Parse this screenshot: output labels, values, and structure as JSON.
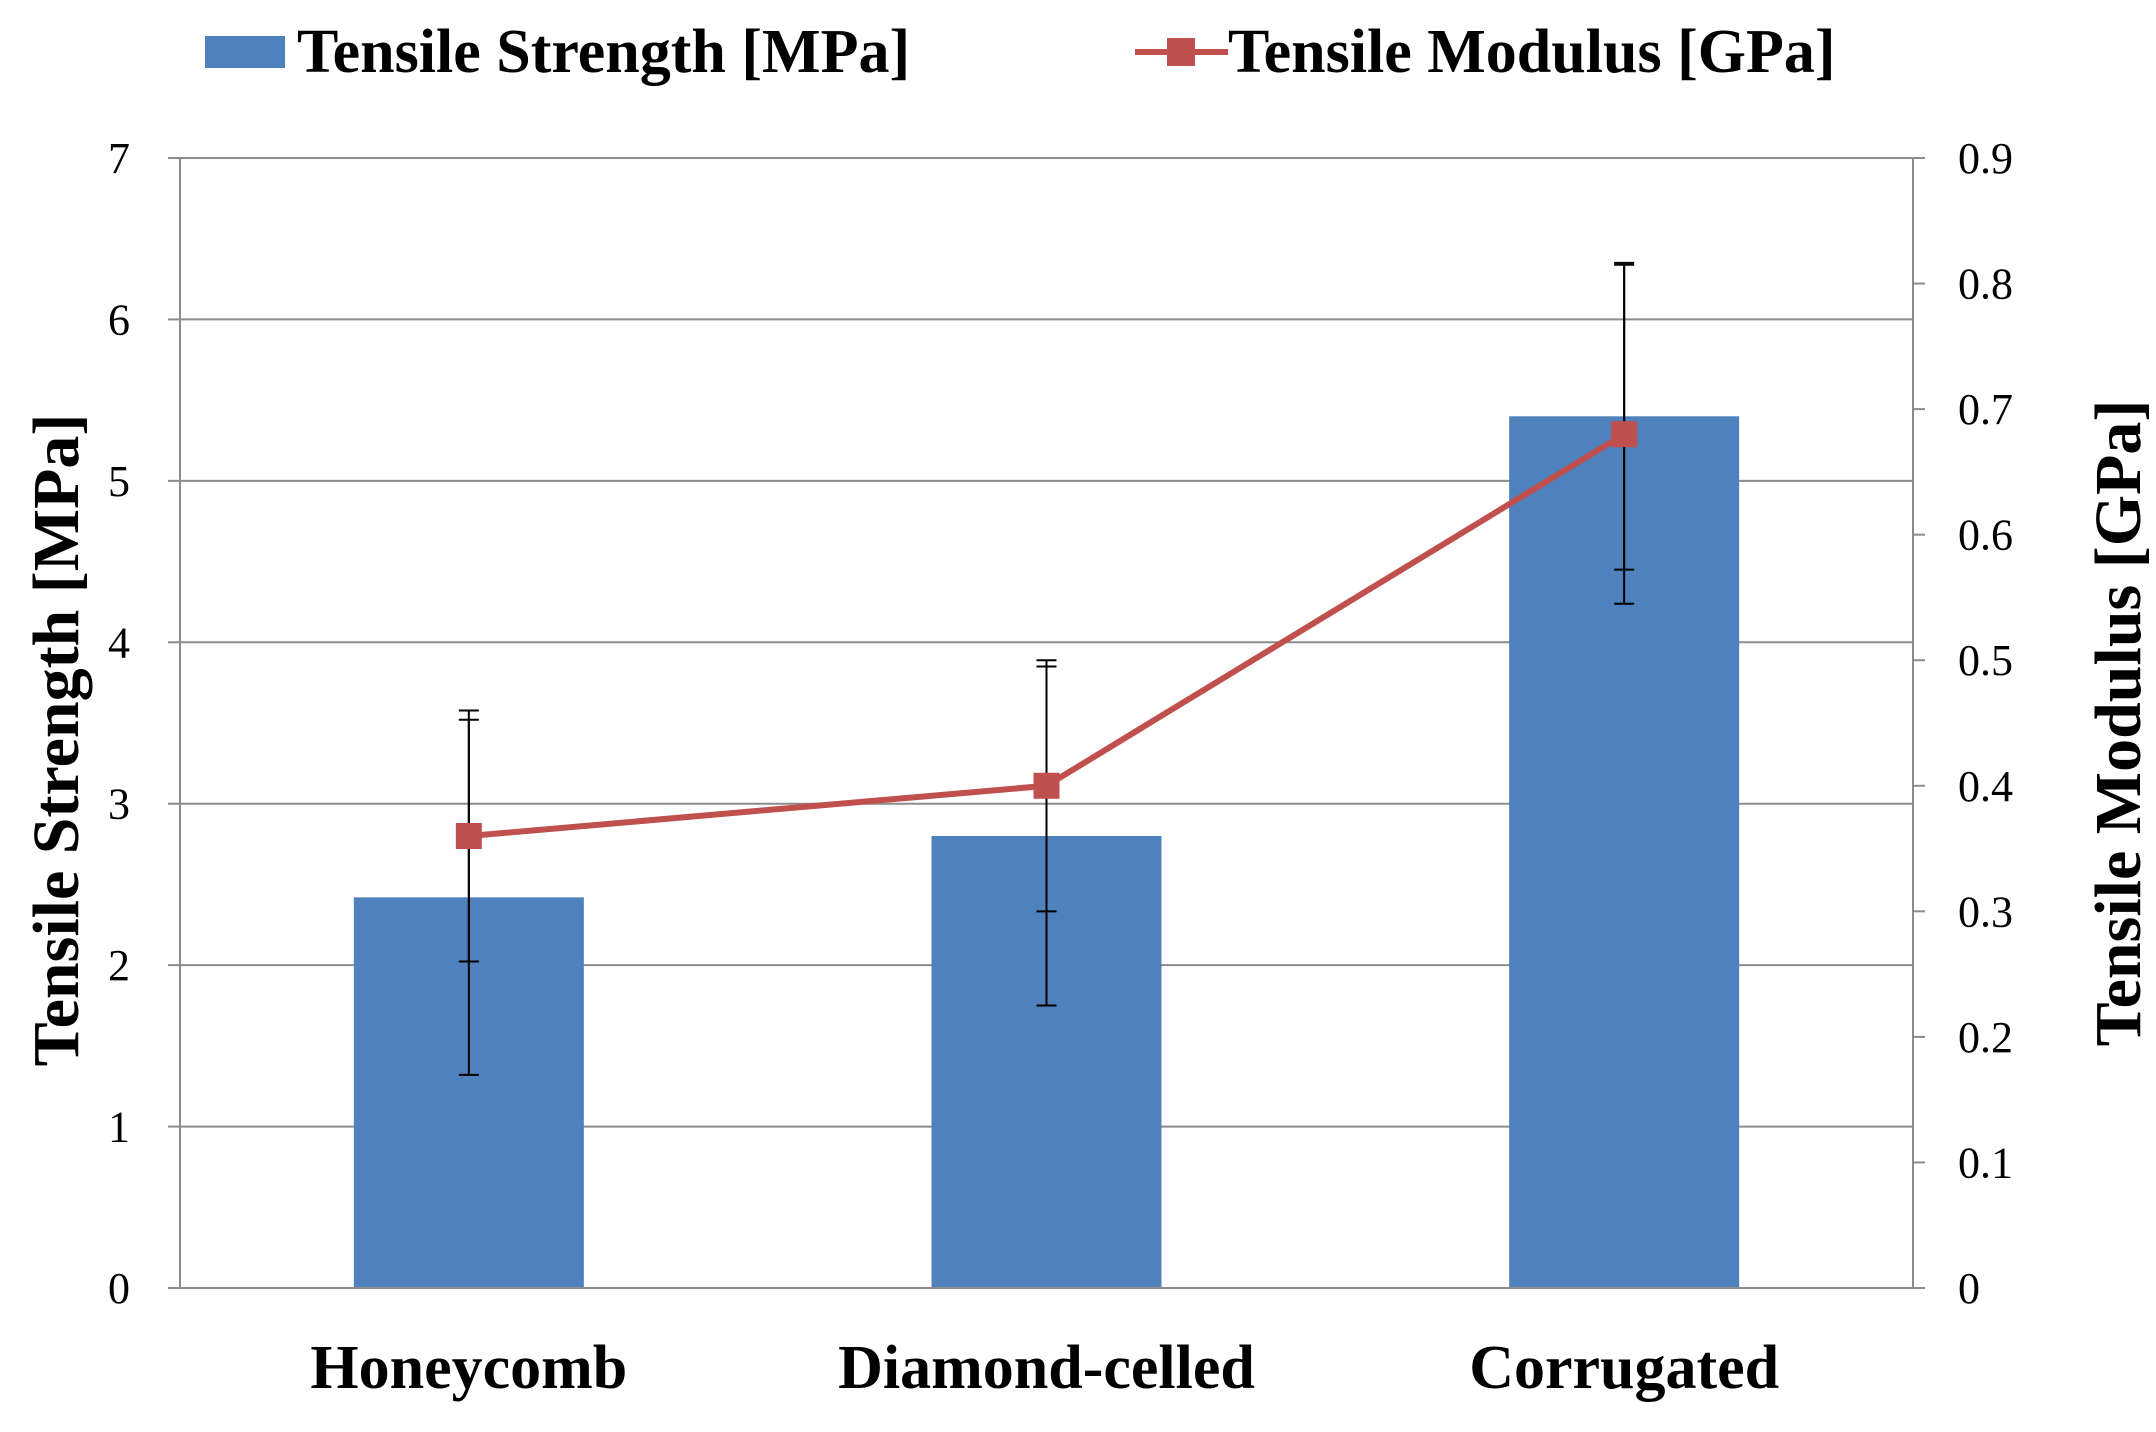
{
  "chart_data": {
    "type": "bar",
    "categories": [
      "Honeycomb",
      "Diamond-celled",
      "Corrugated"
    ],
    "series": [
      {
        "name": "Tensile Strength [MPa]",
        "kind": "bar",
        "axis": "left",
        "values": [
          2.42,
          2.8,
          5.4
        ],
        "error": [
          1.1,
          1.05,
          0.95
        ],
        "color": "#4f81bd"
      },
      {
        "name": "Tensile Modulus [GPa]",
        "kind": "line",
        "axis": "right",
        "values": [
          0.36,
          0.4,
          0.68
        ],
        "error": [
          0.1,
          0.1,
          0.135
        ],
        "color": "#c0504d"
      }
    ],
    "left_axis": {
      "label": "Tensile Strength [MPa]",
      "ylim": [
        0,
        7
      ],
      "ticks": [
        "0",
        "1",
        "2",
        "3",
        "4",
        "5",
        "6",
        "7"
      ]
    },
    "right_axis": {
      "label": "Tensile Modulus [GPa]",
      "ylim": [
        0,
        0.9
      ],
      "ticks": [
        "0",
        "0.1",
        "0.2",
        "0.3",
        "0.4",
        "0.5",
        "0.6",
        "0.7",
        "0.8",
        "0.9"
      ]
    },
    "grid": true,
    "legend": "top"
  }
}
